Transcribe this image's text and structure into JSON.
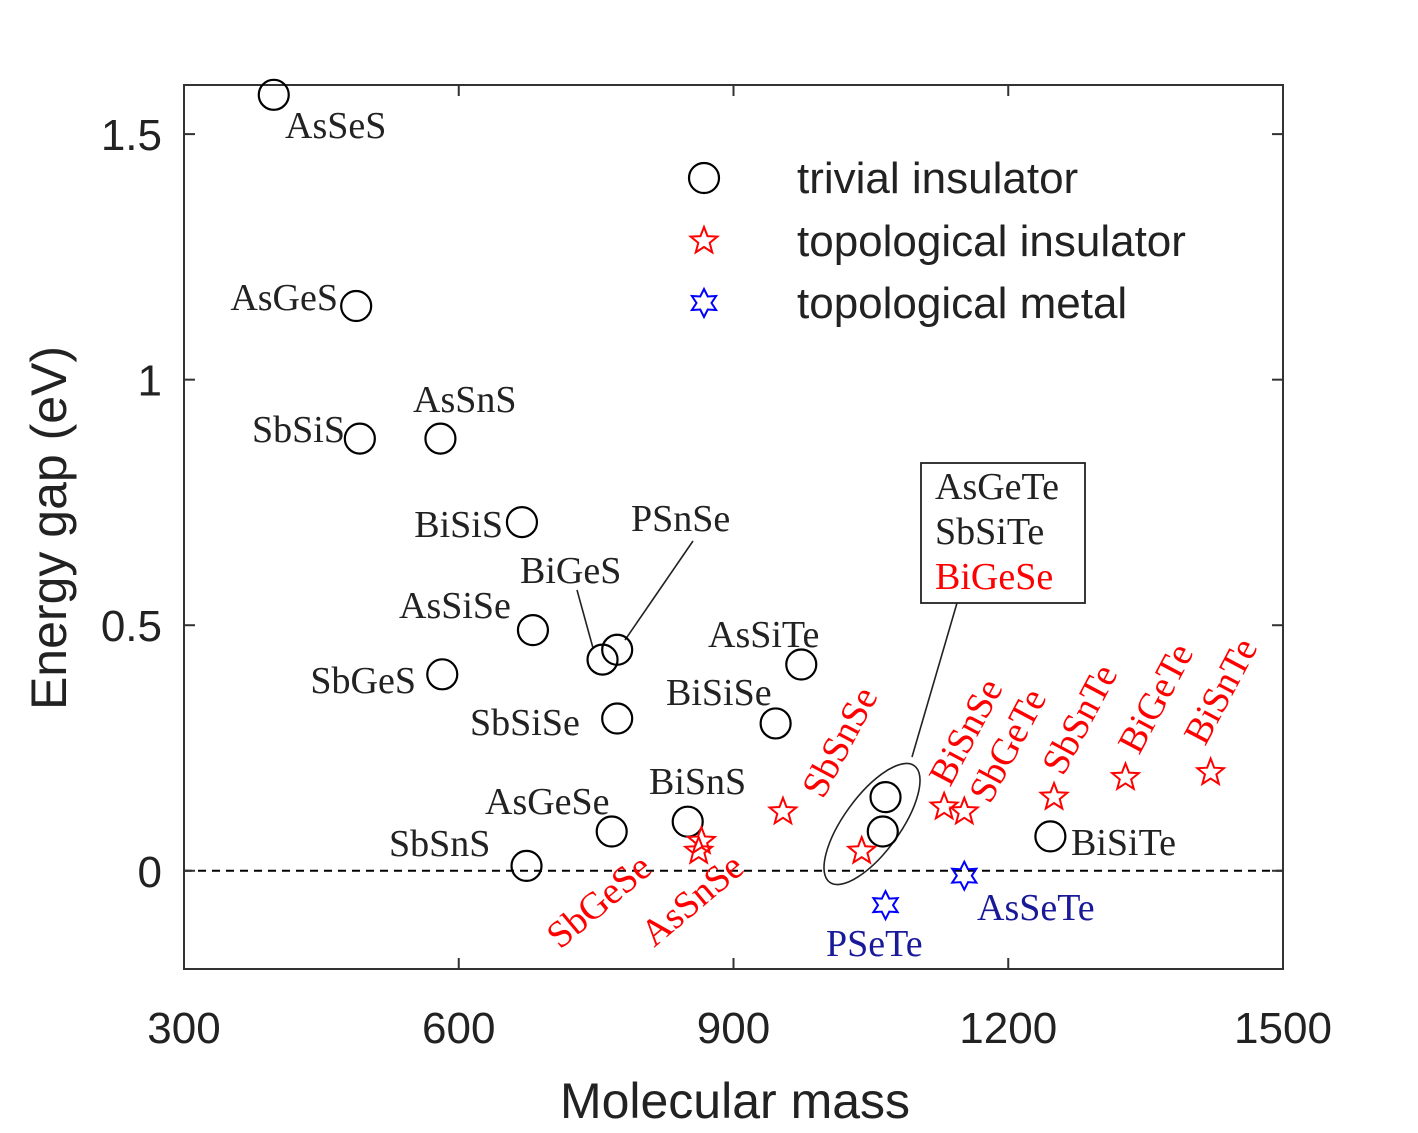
{
  "chart_data": {
    "type": "scatter",
    "title": "",
    "xlabel": "Molecular mass",
    "ylabel": "Energy gap (eV)",
    "xlim": [
      300,
      1500
    ],
    "ylim": [
      -0.2,
      1.6
    ],
    "xticks": [
      300,
      600,
      900,
      1200,
      1500
    ],
    "xtick_labels": [
      "300",
      "600",
      "900",
      "1200",
      "1500"
    ],
    "yticks": [
      0,
      0.5,
      1,
      1.5
    ],
    "ytick_labels": [
      "0",
      "0.5",
      "1",
      "1.5"
    ],
    "grid": false,
    "zero_line": true,
    "legend_position": "top-right",
    "colors": {
      "trivial": "#000000",
      "topo_insulator": "#ff0000",
      "topo_metal": "#0000ff",
      "metal_label": "#1a1a99"
    },
    "series": [
      {
        "name": "trivial insulator",
        "marker": "circle",
        "points": [
          {
            "label": "AsSeS",
            "x": 398,
            "y": 1.58
          },
          {
            "label": "AsGeS",
            "x": 488,
            "y": 1.15
          },
          {
            "label": "SbSiS",
            "x": 492,
            "y": 0.88
          },
          {
            "label": "AsSnS",
            "x": 580,
            "y": 0.88
          },
          {
            "label": "BiSiS",
            "x": 669,
            "y": 0.71
          },
          {
            "label": "AsSiSe",
            "x": 681,
            "y": 0.49
          },
          {
            "label": "SbGeS",
            "x": 582,
            "y": 0.4
          },
          {
            "label": "BiGeS",
            "x": 757,
            "y": 0.43
          },
          {
            "label": "PSnSe",
            "x": 773,
            "y": 0.45
          },
          {
            "label": "SbSiSe",
            "x": 773,
            "y": 0.31
          },
          {
            "label": "AsSiTe",
            "x": 974,
            "y": 0.42
          },
          {
            "label": "BiSiSe",
            "x": 946,
            "y": 0.3
          },
          {
            "label": "AsGeSe",
            "x": 767,
            "y": 0.08
          },
          {
            "label": "BiSnS",
            "x": 850,
            "y": 0.1
          },
          {
            "label": "SbSnS",
            "x": 674,
            "y": 0.01
          },
          {
            "label": "BiSiTe",
            "x": 1246,
            "y": 0.07
          },
          {
            "label": "AsGeTe",
            "x": 1066,
            "y": 0.15
          },
          {
            "label": "SbSiTe",
            "x": 1063,
            "y": 0.08
          }
        ]
      },
      {
        "name": "topological insulator",
        "marker": "star",
        "points": [
          {
            "label": "SbGeSe",
            "x": 865,
            "y": 0.06
          },
          {
            "label": "AsSnSe",
            "x": 862,
            "y": 0.04
          },
          {
            "label": "SbSnSe",
            "x": 954,
            "y": 0.12
          },
          {
            "label": "BiGeSe",
            "x": 1040,
            "y": 0.04
          },
          {
            "label": "BiSnSe",
            "x": 1130,
            "y": 0.13
          },
          {
            "label": "SbGeTe",
            "x": 1152,
            "y": 0.12
          },
          {
            "label": "SbSnTe",
            "x": 1250,
            "y": 0.15
          },
          {
            "label": "BiGeTe",
            "x": 1328,
            "y": 0.19
          },
          {
            "label": "BiSnTe",
            "x": 1421,
            "y": 0.2
          }
        ]
      },
      {
        "name": "topological metal",
        "marker": "star6",
        "points": [
          {
            "label": "PSeTe",
            "x": 1066,
            "y": -0.07
          },
          {
            "label": "AsSeTe",
            "x": 1152,
            "y": -0.01
          }
        ]
      }
    ],
    "legend": [
      {
        "label": "trivial insulator",
        "marker": "circle"
      },
      {
        "label": "topological insulator",
        "marker": "star"
      },
      {
        "label": "topological metal",
        "marker": "star6"
      }
    ],
    "annotation_box": [
      "AsGeTe",
      "SbSiTe",
      "BiGeSe"
    ]
  }
}
